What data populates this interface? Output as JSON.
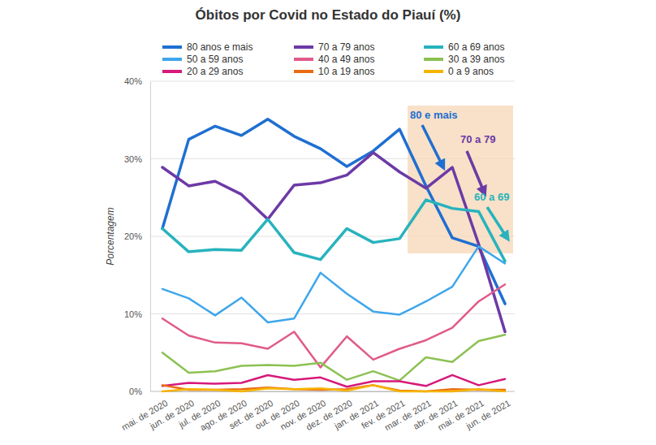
{
  "chart_data": {
    "type": "line",
    "title": "Óbitos por Covid no Estado do Piauí (%)",
    "y_label": "Porcentagem",
    "categories": [
      "mai. de 2020",
      "jun. de 2020",
      "jul. de 2020",
      "ago. de 2020",
      "set. de 2020",
      "out. de 2020",
      "nov. de 2020",
      "dez. de 2020",
      "jan. de 2021",
      "fev. de 2021",
      "mar. de 2021",
      "abr. de 2021",
      "mai. de 2021",
      "jun. de 2021"
    ],
    "series": [
      {
        "name": "80 anos e mais",
        "color": "#1f6fd1",
        "values": [
          21,
          32.5,
          34.2,
          33,
          35.1,
          32.9,
          31.3,
          29,
          31,
          33.8,
          26.5,
          19.8,
          18.7,
          11.3
        ]
      },
      {
        "name": "70 a 79 anos",
        "color": "#6c3aa6",
        "values": [
          28.9,
          26.5,
          27.1,
          25.4,
          22.2,
          26.6,
          26.9,
          27.9,
          30.8,
          28.3,
          26.2,
          28.9,
          19,
          7.7
        ]
      },
      {
        "name": "60 a 69 anos",
        "color": "#27b3bd",
        "values": [
          21,
          18,
          18.3,
          18.2,
          22.2,
          17.9,
          17,
          21,
          19.2,
          19.7,
          24.7,
          23.6,
          23.2,
          16.8
        ]
      },
      {
        "name": "50 a 59 anos",
        "color": "#3ea6ec",
        "values": [
          13.2,
          12,
          9.8,
          12.1,
          8.9,
          9.4,
          15.3,
          12.6,
          10.3,
          9.9,
          11.6,
          13.5,
          18.7,
          16.5
        ]
      },
      {
        "name": "40 a 49 anos",
        "color": "#e05a8a",
        "values": [
          9.4,
          7.2,
          6.3,
          6.2,
          5.5,
          7.7,
          3.1,
          7.1,
          4.1,
          5.5,
          6.6,
          8.2,
          11.6,
          13.8
        ]
      },
      {
        "name": "30 a 39 anos",
        "color": "#8cc152",
        "values": [
          5,
          2.4,
          2.6,
          3.3,
          3.4,
          3.3,
          3.7,
          1.5,
          2.6,
          1.4,
          4.4,
          3.8,
          6.5,
          7.3
        ]
      },
      {
        "name": "20 a 29 anos",
        "color": "#d6197a",
        "values": [
          0.7,
          1.1,
          1,
          1.1,
          2.1,
          1.5,
          1.8,
          0.6,
          1.3,
          1.3,
          0.7,
          2.1,
          0.8,
          1.6
        ]
      },
      {
        "name": "10 a 19 anos",
        "color": "#ea6c12",
        "values": [
          0.8,
          0.2,
          0.2,
          0.3,
          0.5,
          0.3,
          0.2,
          0.3,
          0.8,
          0.1,
          0,
          0.3,
          0.2,
          0.2
        ]
      },
      {
        "name": "0 a 9 anos",
        "color": "#f6b400",
        "values": [
          0,
          0.3,
          0.2,
          0,
          0.4,
          0.3,
          0.4,
          0.1,
          0.8,
          0,
          0,
          0,
          0.3,
          0
        ]
      }
    ],
    "annotations": [
      {
        "text": "80 e mais",
        "color": "#1f6fd1"
      },
      {
        "text": "70 a 79",
        "color": "#6c3aa6"
      },
      {
        "text": "60 a 69",
        "color": "#27b3bd"
      }
    ],
    "ylim": [
      0,
      40
    ],
    "yticks": [
      {
        "value": 0,
        "label": "0%"
      },
      {
        "value": 10,
        "label": "10%"
      },
      {
        "value": 20,
        "label": "20%"
      },
      {
        "value": 30,
        "label": "30%"
      },
      {
        "value": 40,
        "label": "40%"
      }
    ],
    "grid": true,
    "legend": "top"
  }
}
